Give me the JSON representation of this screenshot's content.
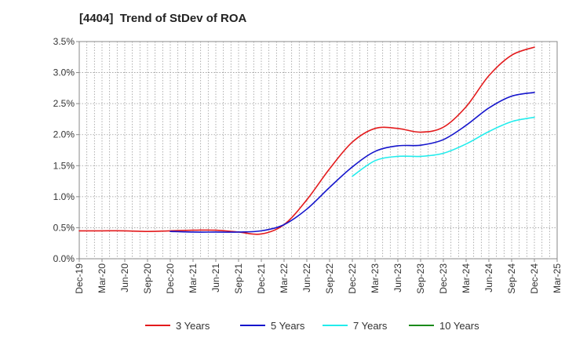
{
  "chart_data": {
    "type": "line",
    "title": "[4404]  Trend of StDev of ROA",
    "xlabel": "",
    "ylabel": "",
    "categories": [
      "Dec-19",
      "Mar-20",
      "Jun-20",
      "Sep-20",
      "Dec-20",
      "Mar-21",
      "Jun-21",
      "Sep-21",
      "Dec-21",
      "Mar-22",
      "Jun-22",
      "Sep-22",
      "Dec-22",
      "Mar-23",
      "Jun-23",
      "Sep-23",
      "Dec-23",
      "Mar-24",
      "Jun-24",
      "Sep-24",
      "Dec-24",
      "Mar-25"
    ],
    "ylim": [
      0,
      3.5
    ],
    "yticks": [
      "0.0%",
      "0.5%",
      "1.0%",
      "1.5%",
      "2.0%",
      "2.5%",
      "3.0%",
      "3.5%"
    ],
    "ytick_values": [
      0,
      0.5,
      1.0,
      1.5,
      2.0,
      2.5,
      3.0,
      3.5
    ],
    "grid": true,
    "legend_position": "bottom",
    "series": [
      {
        "name": "3 Years",
        "color": "#e31a1c",
        "values": [
          0.45,
          0.45,
          0.45,
          0.44,
          0.45,
          0.46,
          0.46,
          0.43,
          0.4,
          0.55,
          0.95,
          1.45,
          1.88,
          2.1,
          2.1,
          2.04,
          2.12,
          2.45,
          2.95,
          3.28,
          3.41,
          null
        ]
      },
      {
        "name": "5 Years",
        "color": "#1515cc",
        "values": [
          null,
          null,
          null,
          null,
          0.44,
          0.43,
          0.43,
          0.43,
          0.45,
          0.55,
          0.8,
          1.15,
          1.48,
          1.73,
          1.82,
          1.83,
          1.92,
          2.15,
          2.43,
          2.62,
          2.68,
          null
        ]
      },
      {
        "name": "7 Years",
        "color": "#22ecec",
        "values": [
          null,
          null,
          null,
          null,
          null,
          null,
          null,
          null,
          null,
          null,
          null,
          null,
          1.33,
          1.58,
          1.65,
          1.65,
          1.7,
          1.85,
          2.05,
          2.21,
          2.28,
          null
        ]
      },
      {
        "name": "10 Years",
        "color": "#1a8a1a",
        "values": [
          null,
          null,
          null,
          null,
          null,
          null,
          null,
          null,
          null,
          null,
          null,
          null,
          null,
          null,
          null,
          null,
          null,
          null,
          null,
          null,
          null,
          null
        ]
      }
    ]
  }
}
